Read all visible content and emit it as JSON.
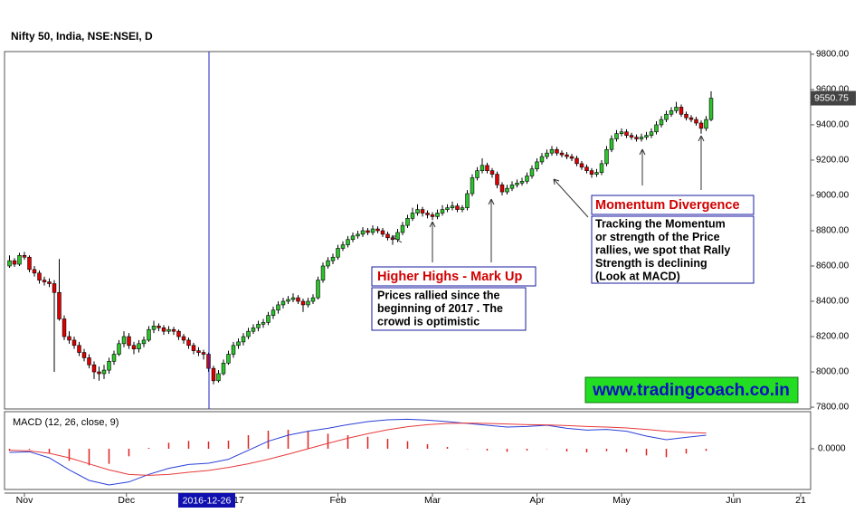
{
  "chart_data": {
    "type": "candlestick",
    "title": "Nifty 50, India, NSE:NSEI, D",
    "up_color": "#2bc42b",
    "down_color": "#e00000",
    "xlim": [
      -1,
      161
    ],
    "xticks": [
      {
        "value": 3,
        "label": "Nov"
      },
      {
        "value": 23.5,
        "label": "Dec"
      },
      {
        "value": 45,
        "label": "2017"
      },
      {
        "value": 66,
        "label": "Feb"
      },
      {
        "value": 85,
        "label": "Mar"
      },
      {
        "value": 106,
        "label": "Apr"
      },
      {
        "value": 123,
        "label": "May"
      },
      {
        "value": 145.5,
        "label": "Jun"
      },
      {
        "value": 159,
        "label": "21"
      }
    ],
    "cursor_label": "2016-12-26",
    "ylim": [
      7790,
      9815
    ],
    "yticks": [
      {
        "value": 7800,
        "label": "7800.00"
      },
      {
        "value": 8000,
        "label": "8000.00"
      },
      {
        "value": 8200,
        "label": "8200.00"
      },
      {
        "value": 8400,
        "label": "8400.00"
      },
      {
        "value": 8600,
        "label": "8600.00"
      },
      {
        "value": 8800,
        "label": "8800.00"
      },
      {
        "value": 9000,
        "label": "9000.00"
      },
      {
        "value": 9200,
        "label": "9200.00"
      },
      {
        "value": 9400,
        "label": "9400.00"
      },
      {
        "value": 9600,
        "label": "9600.00"
      },
      {
        "value": 9800,
        "label": "9800.00"
      }
    ],
    "grid": false,
    "candles": [
      [
        8600,
        8660,
        8590,
        8630
      ],
      [
        8630,
        8645,
        8595,
        8610
      ],
      [
        8610,
        8675,
        8600,
        8660
      ],
      [
        8660,
        8680,
        8635,
        8650
      ],
      [
        8650,
        8660,
        8565,
        8580
      ],
      [
        8580,
        8600,
        8540,
        8560
      ],
      [
        8560,
        8575,
        8500,
        8520
      ],
      [
        8520,
        8540,
        8490,
        8510
      ],
      [
        8510,
        8530,
        8480,
        8500
      ],
      [
        8500,
        8520,
        8000,
        8450
      ],
      [
        8450,
        8640,
        8290,
        8300
      ],
      [
        8300,
        8320,
        8180,
        8200
      ],
      [
        8200,
        8230,
        8160,
        8180
      ],
      [
        8180,
        8200,
        8130,
        8150
      ],
      [
        8150,
        8170,
        8090,
        8110
      ],
      [
        8110,
        8130,
        8060,
        8080
      ],
      [
        8080,
        8100,
        8020,
        8040
      ],
      [
        8040,
        8060,
        7960,
        8000
      ],
      [
        8000,
        8030,
        7950,
        7990
      ],
      [
        7990,
        8040,
        7960,
        8010
      ],
      [
        8010,
        8080,
        7990,
        8060
      ],
      [
        8060,
        8120,
        8040,
        8100
      ],
      [
        8100,
        8180,
        8090,
        8160
      ],
      [
        8160,
        8230,
        8140,
        8200
      ],
      [
        8200,
        8220,
        8130,
        8150
      ],
      [
        8150,
        8170,
        8100,
        8130
      ],
      [
        8130,
        8180,
        8110,
        8160
      ],
      [
        8160,
        8200,
        8140,
        8180
      ],
      [
        8180,
        8260,
        8170,
        8240
      ],
      [
        8240,
        8290,
        8220,
        8260
      ],
      [
        8260,
        8275,
        8230,
        8250
      ],
      [
        8250,
        8265,
        8210,
        8230
      ],
      [
        8230,
        8260,
        8215,
        8240
      ],
      [
        8240,
        8255,
        8210,
        8230
      ],
      [
        8230,
        8240,
        8180,
        8200
      ],
      [
        8200,
        8215,
        8160,
        8180
      ],
      [
        8180,
        8195,
        8130,
        8150
      ],
      [
        8150,
        8165,
        8100,
        8120
      ],
      [
        8120,
        8140,
        8090,
        8110
      ],
      [
        8110,
        8125,
        8070,
        8100
      ],
      [
        8100,
        8110,
        8000,
        8020
      ],
      [
        8020,
        8035,
        7930,
        7950
      ],
      [
        7950,
        8010,
        7940,
        7990
      ],
      [
        7990,
        8070,
        7980,
        8050
      ],
      [
        8050,
        8120,
        8040,
        8100
      ],
      [
        8100,
        8170,
        8080,
        8150
      ],
      [
        8150,
        8190,
        8130,
        8170
      ],
      [
        8170,
        8220,
        8150,
        8200
      ],
      [
        8200,
        8250,
        8185,
        8230
      ],
      [
        8230,
        8270,
        8215,
        8250
      ],
      [
        8250,
        8290,
        8230,
        8270
      ],
      [
        8270,
        8300,
        8250,
        8280
      ],
      [
        8280,
        8340,
        8265,
        8320
      ],
      [
        8320,
        8370,
        8300,
        8350
      ],
      [
        8350,
        8400,
        8330,
        8380
      ],
      [
        8380,
        8420,
        8360,
        8400
      ],
      [
        8400,
        8430,
        8385,
        8410
      ],
      [
        8410,
        8445,
        8395,
        8420
      ],
      [
        8420,
        8435,
        8385,
        8400
      ],
      [
        8400,
        8415,
        8340,
        8380
      ],
      [
        8380,
        8420,
        8365,
        8400
      ],
      [
        8400,
        8440,
        8385,
        8420
      ],
      [
        8420,
        8540,
        8410,
        8520
      ],
      [
        8520,
        8620,
        8505,
        8600
      ],
      [
        8600,
        8650,
        8585,
        8630
      ],
      [
        8630,
        8670,
        8610,
        8650
      ],
      [
        8650,
        8720,
        8635,
        8700
      ],
      [
        8700,
        8740,
        8685,
        8720
      ],
      [
        8720,
        8770,
        8705,
        8750
      ],
      [
        8750,
        8790,
        8735,
        8770
      ],
      [
        8770,
        8800,
        8755,
        8780
      ],
      [
        8780,
        8820,
        8765,
        8800
      ],
      [
        8800,
        8815,
        8775,
        8790
      ],
      [
        8790,
        8830,
        8775,
        8810
      ],
      [
        8810,
        8825,
        8785,
        8800
      ],
      [
        8800,
        8815,
        8765,
        8780
      ],
      [
        8780,
        8795,
        8745,
        8760
      ],
      [
        8760,
        8775,
        8720,
        8750
      ],
      [
        8750,
        8810,
        8735,
        8790
      ],
      [
        8790,
        8850,
        8775,
        8830
      ],
      [
        8830,
        8890,
        8815,
        8870
      ],
      [
        8870,
        8930,
        8855,
        8900
      ],
      [
        8900,
        8950,
        8885,
        8920
      ],
      [
        8920,
        8935,
        8880,
        8900
      ],
      [
        8900,
        8915,
        8870,
        8890
      ],
      [
        8890,
        8905,
        8860,
        8880
      ],
      [
        8880,
        8920,
        8865,
        8900
      ],
      [
        8900,
        8945,
        8885,
        8920
      ],
      [
        8920,
        8950,
        8905,
        8930
      ],
      [
        8930,
        8965,
        8915,
        8940
      ],
      [
        8940,
        8955,
        8905,
        8920
      ],
      [
        8920,
        8945,
        8905,
        8930
      ],
      [
        8930,
        9030,
        8915,
        9010
      ],
      [
        9010,
        9120,
        8995,
        9100
      ],
      [
        9100,
        9160,
        9085,
        9140
      ],
      [
        9140,
        9210,
        9125,
        9170
      ],
      [
        9170,
        9185,
        9125,
        9140
      ],
      [
        9140,
        9155,
        9100,
        9120
      ],
      [
        9120,
        9135,
        9040,
        9060
      ],
      [
        9060,
        9075,
        9000,
        9020
      ],
      [
        9020,
        9060,
        9005,
        9040
      ],
      [
        9040,
        9080,
        9025,
        9060
      ],
      [
        9060,
        9090,
        9045,
        9070
      ],
      [
        9070,
        9100,
        9055,
        9080
      ],
      [
        9080,
        9130,
        9065,
        9110
      ],
      [
        9110,
        9170,
        9095,
        9150
      ],
      [
        9150,
        9210,
        9135,
        9190
      ],
      [
        9190,
        9240,
        9175,
        9220
      ],
      [
        9220,
        9260,
        9205,
        9240
      ],
      [
        9240,
        9280,
        9225,
        9260
      ],
      [
        9260,
        9275,
        9225,
        9240
      ],
      [
        9240,
        9255,
        9215,
        9230
      ],
      [
        9230,
        9245,
        9205,
        9220
      ],
      [
        9220,
        9235,
        9195,
        9210
      ],
      [
        9210,
        9225,
        9165,
        9180
      ],
      [
        9180,
        9195,
        9145,
        9160
      ],
      [
        9160,
        9175,
        9125,
        9140
      ],
      [
        9140,
        9155,
        9100,
        9120
      ],
      [
        9120,
        9150,
        9105,
        9130
      ],
      [
        9130,
        9200,
        9115,
        9180
      ],
      [
        9180,
        9280,
        9165,
        9260
      ],
      [
        9260,
        9340,
        9245,
        9320
      ],
      [
        9320,
        9370,
        9305,
        9350
      ],
      [
        9350,
        9380,
        9335,
        9360
      ],
      [
        9360,
        9375,
        9325,
        9340
      ],
      [
        9340,
        9355,
        9315,
        9330
      ],
      [
        9330,
        9345,
        9305,
        9320
      ],
      [
        9320,
        9350,
        9305,
        9330
      ],
      [
        9330,
        9360,
        9315,
        9340
      ],
      [
        9340,
        9380,
        9325,
        9360
      ],
      [
        9360,
        9420,
        9345,
        9400
      ],
      [
        9400,
        9450,
        9385,
        9430
      ],
      [
        9430,
        9480,
        9415,
        9460
      ],
      [
        9460,
        9500,
        9445,
        9480
      ],
      [
        9480,
        9530,
        9465,
        9500
      ],
      [
        9500,
        9515,
        9445,
        9460
      ],
      [
        9460,
        9475,
        9425,
        9440
      ],
      [
        9440,
        9455,
        9415,
        9430
      ],
      [
        9430,
        9445,
        9395,
        9410
      ],
      [
        9410,
        9425,
        9350,
        9380
      ],
      [
        9380,
        9450,
        9365,
        9430
      ],
      [
        9430,
        9590,
        9420,
        9550.75
      ]
    ],
    "annotations": [
      {
        "title": "Higher Highs - Mark Up",
        "lines": [
          "Prices rallied since the",
          "beginning of 2017 . The",
          "crowd is optimistic"
        ]
      },
      {
        "title": "Momentum Divergence",
        "lines": [
          "Tracking the Momentum",
          "or strength of the Price",
          "rallies, we spot that Rally",
          "Strength is declining",
          "(Look at MACD)"
        ]
      }
    ],
    "watermark": "www.tradingcoach.co.in",
    "macd": {
      "title": "MACD (12, 26, close, 9)",
      "ylim": [
        -135,
        123
      ],
      "yticks": [
        {
          "value": 0,
          "label": "0.0000"
        }
      ],
      "series": [
        {
          "color": "#2b3fd8",
          "values": [
            -12,
            -10,
            -30,
            -70,
            -105,
            -120,
            -110,
            -85,
            -65,
            -52,
            -48,
            -35,
            -5,
            25,
            45,
            58,
            68,
            80,
            90,
            96,
            98,
            95,
            90,
            84,
            78,
            72,
            74,
            78,
            68,
            62,
            64,
            58,
            42,
            30,
            38,
            45
          ]
        },
        {
          "color": "#e83a3a",
          "values": [
            -5,
            -7,
            -15,
            -30,
            -50,
            -70,
            -85,
            -88,
            -85,
            -78,
            -72,
            -62,
            -50,
            -35,
            -18,
            0,
            18,
            35,
            50,
            63,
            73,
            80,
            84,
            85,
            84,
            82,
            80,
            79,
            77,
            74,
            72,
            69,
            64,
            58,
            54,
            52
          ]
        }
      ],
      "histogram": {
        "color": "#e02020",
        "values": [
          -7,
          -3,
          -15,
          -40,
          -55,
          -50,
          -25,
          3,
          20,
          26,
          24,
          27,
          45,
          60,
          63,
          58,
          50,
          45,
          40,
          33,
          25,
          15,
          6,
          -1,
          -6,
          -10,
          -6,
          -1,
          -9,
          -12,
          -8,
          -11,
          -22,
          -28,
          -16,
          -7
        ]
      }
    }
  }
}
